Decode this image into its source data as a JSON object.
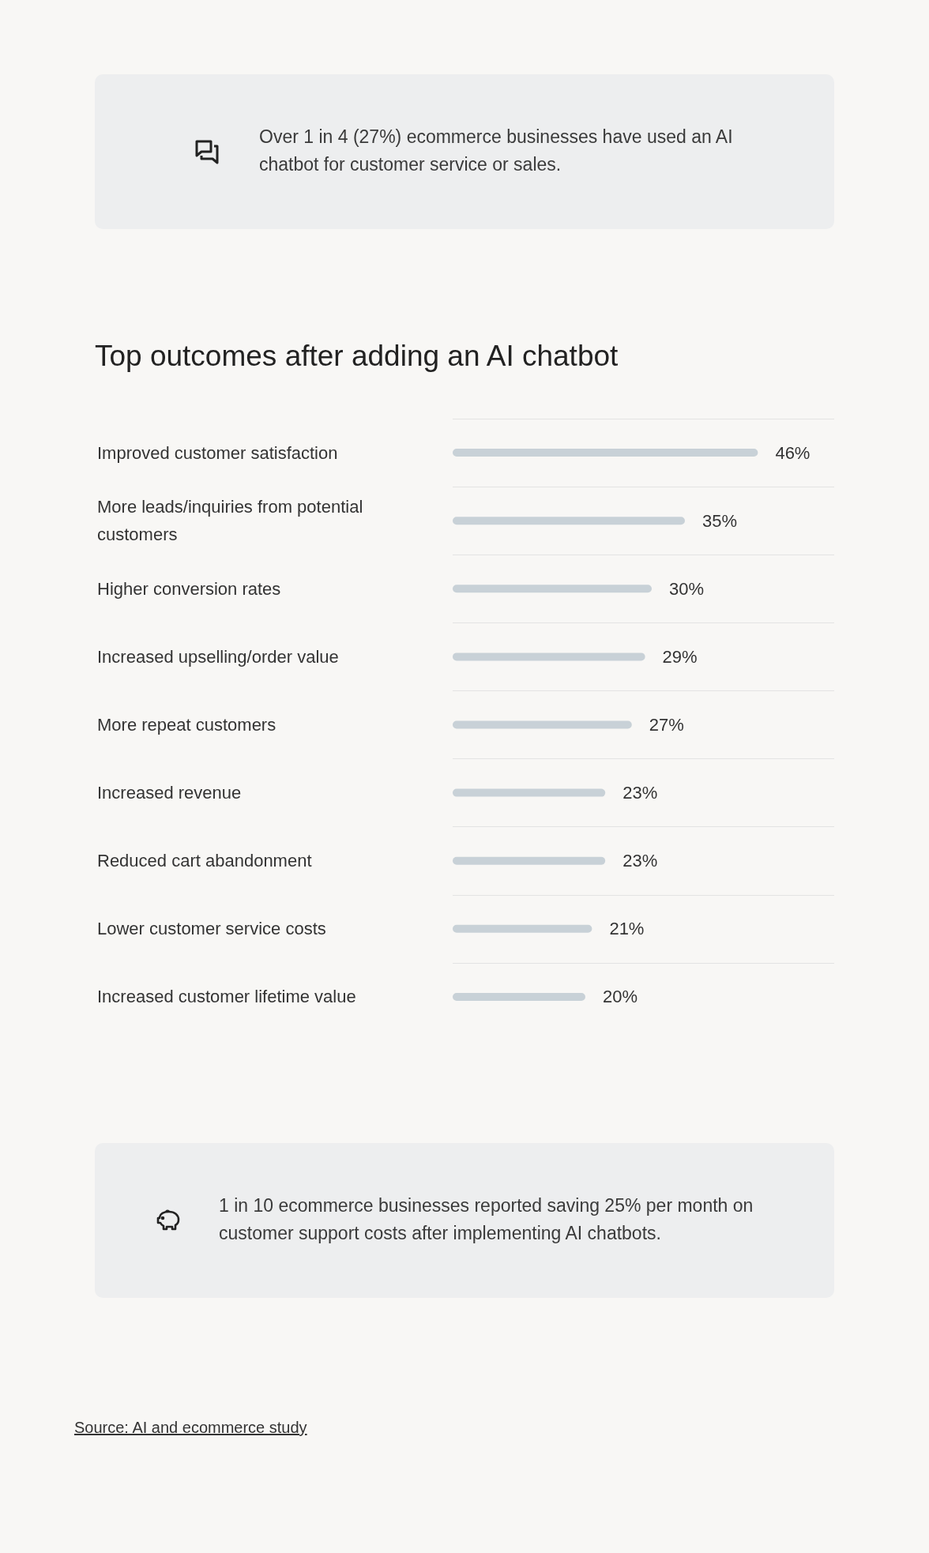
{
  "chart_data": {
    "type": "bar",
    "orientation": "horizontal",
    "title": "Top outcomes after adding an AI chatbot",
    "categories": [
      "Improved customer satisfaction",
      "More leads/inquiries from potential customers",
      "Higher conversion rates",
      "Increased upselling/order value",
      "More repeat customers",
      "Increased revenue",
      "Reduced cart abandonment",
      "Lower customer service costs",
      "Increased customer lifetime value"
    ],
    "values": [
      46,
      35,
      30,
      29,
      27,
      23,
      23,
      21,
      20
    ],
    "value_labels": [
      "46%",
      "35%",
      "30%",
      "29%",
      "27%",
      "23%",
      "23%",
      "21%",
      "20%"
    ],
    "color": "#c8d1d7",
    "grid": "y",
    "annotations": [
      "Over 1 in 4 (27%) ecommerce businesses have used an AI chatbot for customer service or sales.",
      "1 in 10 ecommerce businesses reported saving 25% per month on customer support costs after implementing AI chatbots.",
      "Source: AI and ecommerce study"
    ]
  }
}
